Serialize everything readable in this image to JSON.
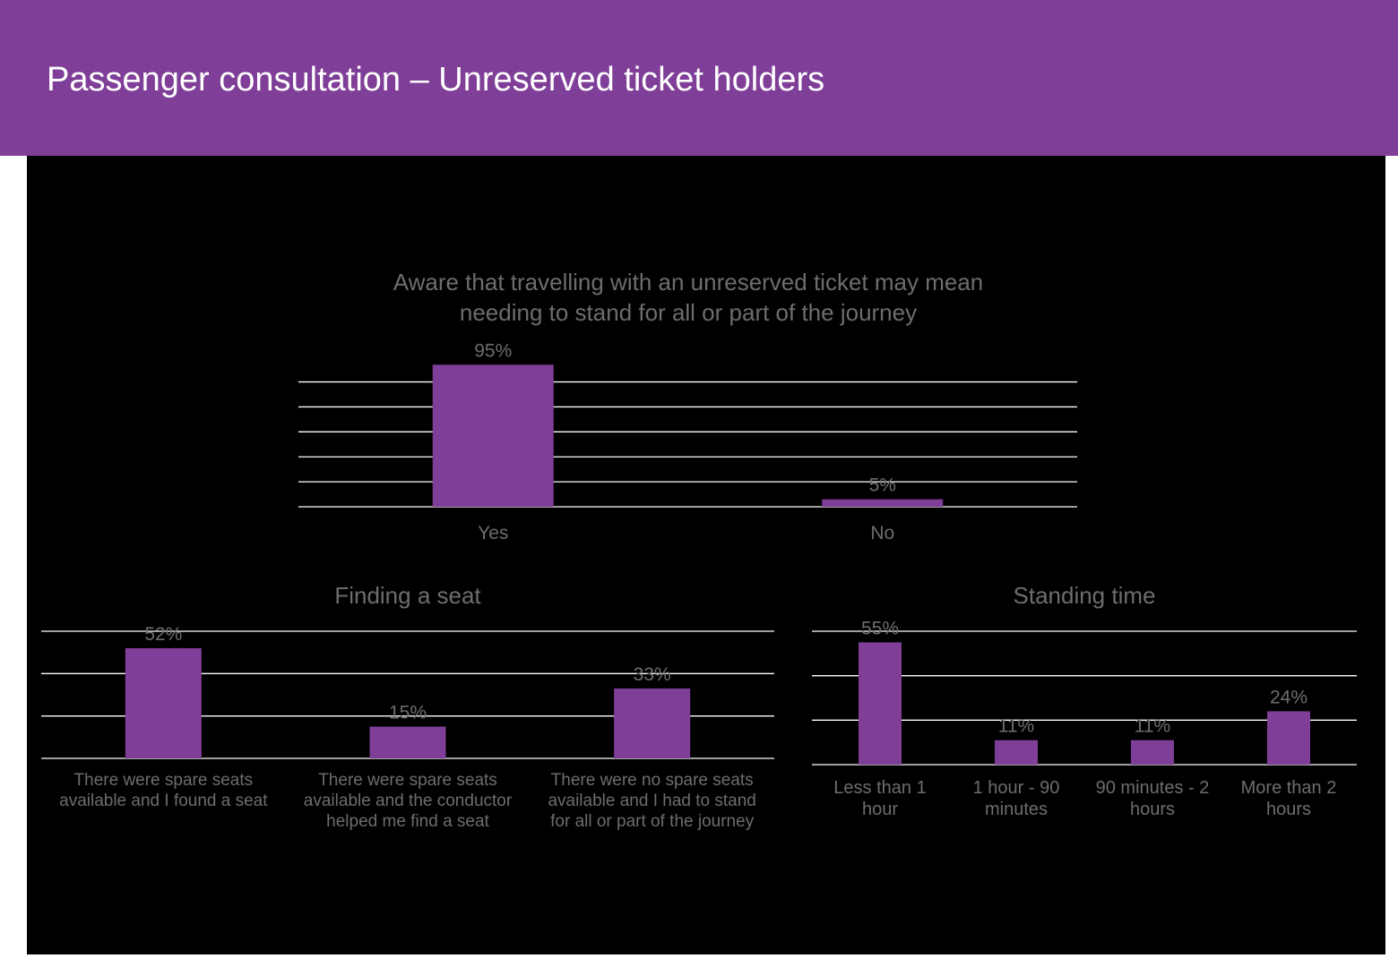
{
  "header": {
    "title": "Passenger consultation – Unreserved ticket holders"
  },
  "colors": {
    "header": "#7f3f98",
    "bar": "#7f3f98",
    "background": "#000000",
    "text": "#6d6d6d",
    "grid": "#ffffff"
  },
  "chart_data": [
    {
      "type": "bar",
      "title": [
        "Aware that travelling with an unreserved ticket may mean",
        "needing to stand for all or part of the journey"
      ],
      "categories": [
        [
          "Yes"
        ],
        [
          "No"
        ]
      ],
      "values": [
        95,
        5
      ],
      "data_labels": [
        "95%",
        "5%"
      ],
      "unit": "%",
      "ylim": [
        0,
        100
      ],
      "grid": true,
      "legend": "none"
    },
    {
      "type": "bar",
      "title": [
        "Finding a seat"
      ],
      "categories": [
        [
          "There were spare seats",
          "available and I found a seat"
        ],
        [
          "There were spare seats",
          "available and the conductor",
          "helped me find a seat"
        ],
        [
          "There were no spare seats",
          "available and I had to stand",
          "for all or part of the journey"
        ]
      ],
      "values": [
        52,
        15,
        33
      ],
      "data_labels": [
        "52%",
        "15%",
        "33%"
      ],
      "unit": "%",
      "ylim": [
        0,
        60
      ],
      "grid": true,
      "legend": "none"
    },
    {
      "type": "bar",
      "title": [
        "Standing time"
      ],
      "categories": [
        [
          "Less than 1",
          "hour"
        ],
        [
          "1 hour - 90",
          "minutes"
        ],
        [
          "90 minutes - 2",
          "hours"
        ],
        [
          "More than 2",
          "hours"
        ]
      ],
      "values": [
        55,
        11,
        11,
        24
      ],
      "data_labels": [
        "55%",
        "11%",
        "11%",
        "24%"
      ],
      "unit": "%",
      "ylim": [
        0,
        60
      ],
      "grid": true,
      "legend": "none"
    }
  ]
}
